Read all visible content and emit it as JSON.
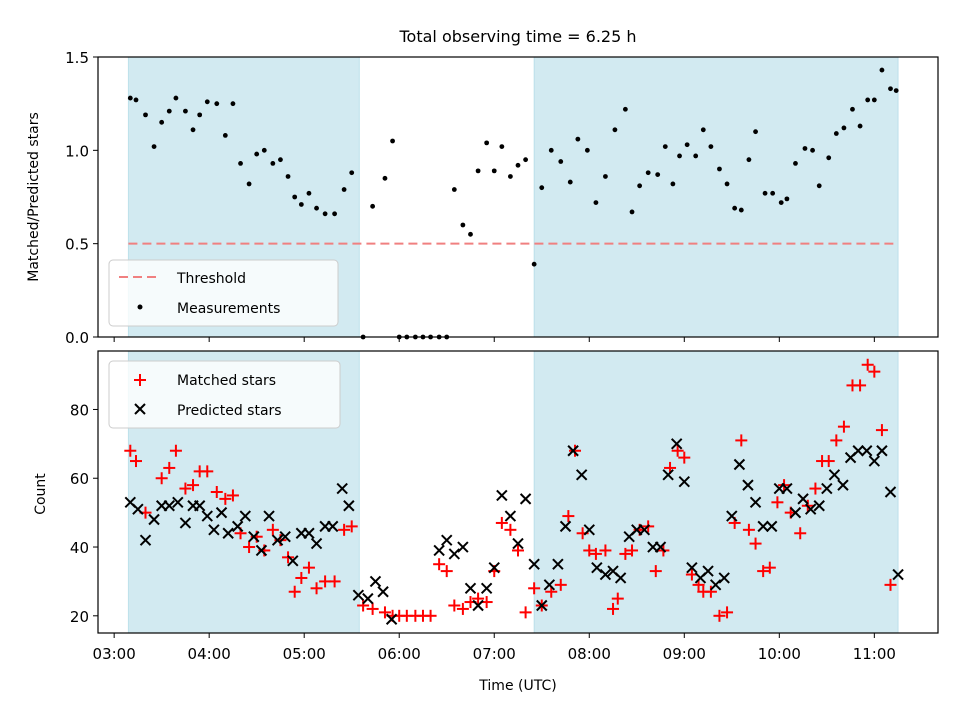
{
  "chart_data": [
    {
      "type": "scatter",
      "title": "Total observing time = 6.25 h",
      "ylabel": "Matched/Predicted stars",
      "xlim_hours": [
        2.83,
        11.67
      ],
      "ylim": [
        0,
        1.5
      ],
      "yticks": [
        "0.0",
        "0.5",
        "1.0",
        "1.5"
      ],
      "shaded_intervals_hours": [
        [
          3.15,
          5.58
        ],
        [
          7.42,
          11.25
        ]
      ],
      "shade_color": "#add8e6",
      "threshold": {
        "name": "Threshold",
        "value": 0.5,
        "x_range": [
          3.15,
          11.2
        ],
        "color": "#f08080"
      },
      "series": [
        {
          "name": "Measurements",
          "color": "#000000",
          "x": [
            3.17,
            3.23,
            3.33,
            3.42,
            3.5,
            3.58,
            3.65,
            3.75,
            3.83,
            3.9,
            3.98,
            4.08,
            4.17,
            4.25,
            4.33,
            4.42,
            4.5,
            4.58,
            4.67,
            4.75,
            4.83,
            4.9,
            4.97,
            5.05,
            5.13,
            5.22,
            5.32,
            5.42,
            5.5,
            5.62,
            5.72,
            5.85,
            5.93,
            6.0,
            6.08,
            6.17,
            6.25,
            6.33,
            6.42,
            6.5,
            6.58,
            6.67,
            6.75,
            6.83,
            6.92,
            7.0,
            7.08,
            7.17,
            7.25,
            7.33,
            7.42,
            7.5,
            7.6,
            7.7,
            7.8,
            7.88,
            7.98,
            8.07,
            8.17,
            8.27,
            8.38,
            8.45,
            8.53,
            8.62,
            8.72,
            8.8,
            8.88,
            8.95,
            9.03,
            9.12,
            9.2,
            9.28,
            9.37,
            9.45,
            9.53,
            9.6,
            9.68,
            9.75,
            9.85,
            9.93,
            10.02,
            10.08,
            10.17,
            10.27,
            10.35,
            10.42,
            10.52,
            10.6,
            10.68,
            10.77,
            10.85,
            10.93,
            11.0,
            11.08,
            11.17,
            11.23
          ],
          "y": [
            1.28,
            1.27,
            1.19,
            1.02,
            1.15,
            1.21,
            1.28,
            1.21,
            1.11,
            1.19,
            1.26,
            1.25,
            1.08,
            1.25,
            0.93,
            0.82,
            0.98,
            1.0,
            0.93,
            0.95,
            0.86,
            0.75,
            0.71,
            0.77,
            0.69,
            0.66,
            0.66,
            0.79,
            0.88,
            0.0,
            0.7,
            0.85,
            1.05,
            0.0,
            0.0,
            0.0,
            0.0,
            0.0,
            0.0,
            0.0,
            0.79,
            0.6,
            0.55,
            0.89,
            1.04,
            0.89,
            1.02,
            0.86,
            0.92,
            0.95,
            0.39,
            0.8,
            1.0,
            0.94,
            0.83,
            1.06,
            1.0,
            0.72,
            0.86,
            1.11,
            1.22,
            0.67,
            0.81,
            0.88,
            0.87,
            1.02,
            0.82,
            0.97,
            1.03,
            0.97,
            1.11,
            1.02,
            0.9,
            0.82,
            0.69,
            0.68,
            0.95,
            1.1,
            0.77,
            0.77,
            0.72,
            0.74,
            0.93,
            1.01,
            1.0,
            0.81,
            0.96,
            1.09,
            1.12,
            1.22,
            1.13,
            1.27,
            1.27,
            1.43,
            1.33,
            1.32
          ]
        }
      ],
      "legend": {
        "position": "lower-left",
        "entries": [
          "Threshold",
          "Measurements"
        ]
      }
    },
    {
      "type": "scatter",
      "xlabel": "Time (UTC)",
      "ylabel": "Count",
      "xlim_hours": [
        2.83,
        11.67
      ],
      "ylim": [
        15,
        97
      ],
      "yticks": [
        "20",
        "40",
        "60",
        "80"
      ],
      "xticks": [
        "03:00",
        "04:00",
        "05:00",
        "06:00",
        "07:00",
        "08:00",
        "09:00",
        "10:00",
        "11:00"
      ],
      "shaded_intervals_hours": [
        [
          3.15,
          5.58
        ],
        [
          7.42,
          11.25
        ]
      ],
      "series": [
        {
          "name": "Matched stars",
          "marker": "plus",
          "color": "#ff0000",
          "points": [
            [
              3.17,
              68
            ],
            [
              3.23,
              65
            ],
            [
              3.33,
              50
            ],
            [
              3.5,
              60
            ],
            [
              3.58,
              63
            ],
            [
              3.65,
              68
            ],
            [
              3.75,
              57
            ],
            [
              3.83,
              58
            ],
            [
              3.9,
              62
            ],
            [
              3.98,
              62
            ],
            [
              4.08,
              56
            ],
            [
              4.17,
              54
            ],
            [
              4.25,
              55
            ],
            [
              4.33,
              44
            ],
            [
              4.42,
              40
            ],
            [
              4.5,
              43
            ],
            [
              4.58,
              39
            ],
            [
              4.67,
              45
            ],
            [
              4.75,
              42
            ],
            [
              4.83,
              37
            ],
            [
              4.9,
              27
            ],
            [
              4.97,
              31
            ],
            [
              5.05,
              34
            ],
            [
              5.13,
              28
            ],
            [
              5.22,
              30
            ],
            [
              5.32,
              30
            ],
            [
              5.42,
              45
            ],
            [
              5.5,
              46
            ],
            [
              5.62,
              23
            ],
            [
              5.72,
              22
            ],
            [
              5.85,
              21
            ],
            [
              5.93,
              20
            ],
            [
              6.0,
              20
            ],
            [
              6.08,
              20
            ],
            [
              6.17,
              20
            ],
            [
              6.25,
              20
            ],
            [
              6.33,
              20
            ],
            [
              6.42,
              35
            ],
            [
              6.5,
              33
            ],
            [
              6.58,
              23
            ],
            [
              6.67,
              22
            ],
            [
              6.75,
              24
            ],
            [
              6.83,
              25
            ],
            [
              6.92,
              24
            ],
            [
              7.0,
              33
            ],
            [
              7.08,
              47
            ],
            [
              7.17,
              45
            ],
            [
              7.25,
              39
            ],
            [
              7.33,
              21
            ],
            [
              7.42,
              28
            ],
            [
              7.5,
              23
            ],
            [
              7.6,
              27
            ],
            [
              7.7,
              29
            ],
            [
              7.78,
              49
            ],
            [
              7.85,
              68
            ],
            [
              7.93,
              44
            ],
            [
              8.0,
              39
            ],
            [
              8.07,
              38
            ],
            [
              8.17,
              39
            ],
            [
              8.25,
              22
            ],
            [
              8.3,
              25
            ],
            [
              8.38,
              38
            ],
            [
              8.45,
              39
            ],
            [
              8.53,
              45
            ],
            [
              8.62,
              46
            ],
            [
              8.7,
              33
            ],
            [
              8.78,
              39
            ],
            [
              8.85,
              63
            ],
            [
              8.93,
              68
            ],
            [
              9.0,
              66
            ],
            [
              9.08,
              32
            ],
            [
              9.15,
              29
            ],
            [
              9.2,
              27
            ],
            [
              9.28,
              27
            ],
            [
              9.37,
              20
            ],
            [
              9.45,
              21
            ],
            [
              9.53,
              47
            ],
            [
              9.6,
              71
            ],
            [
              9.68,
              45
            ],
            [
              9.75,
              41
            ],
            [
              9.83,
              33
            ],
            [
              9.9,
              34
            ],
            [
              9.98,
              53
            ],
            [
              10.05,
              58
            ],
            [
              10.12,
              50
            ],
            [
              10.22,
              44
            ],
            [
              10.3,
              52
            ],
            [
              10.38,
              57
            ],
            [
              10.45,
              65
            ],
            [
              10.52,
              65
            ],
            [
              10.6,
              71
            ],
            [
              10.68,
              75
            ],
            [
              10.77,
              87
            ],
            [
              10.85,
              87
            ],
            [
              10.93,
              93
            ],
            [
              11.0,
              91
            ],
            [
              11.08,
              74
            ],
            [
              11.17,
              29
            ]
          ]
        },
        {
          "name": "Predicted stars",
          "marker": "x",
          "color": "#000000",
          "points": [
            [
              3.17,
              53
            ],
            [
              3.25,
              51
            ],
            [
              3.33,
              42
            ],
            [
              3.42,
              48
            ],
            [
              3.5,
              52
            ],
            [
              3.58,
              52
            ],
            [
              3.67,
              53
            ],
            [
              3.75,
              47
            ],
            [
              3.83,
              52
            ],
            [
              3.9,
              52
            ],
            [
              3.98,
              49
            ],
            [
              4.05,
              45
            ],
            [
              4.13,
              50
            ],
            [
              4.2,
              44
            ],
            [
              4.3,
              46
            ],
            [
              4.38,
              49
            ],
            [
              4.47,
              43
            ],
            [
              4.55,
              39
            ],
            [
              4.63,
              49
            ],
            [
              4.72,
              42
            ],
            [
              4.8,
              43
            ],
            [
              4.88,
              36
            ],
            [
              4.97,
              44
            ],
            [
              5.05,
              44
            ],
            [
              5.13,
              41
            ],
            [
              5.22,
              46
            ],
            [
              5.3,
              46
            ],
            [
              5.4,
              57
            ],
            [
              5.47,
              52
            ],
            [
              5.57,
              26
            ],
            [
              5.67,
              25
            ],
            [
              5.75,
              30
            ],
            [
              5.83,
              27
            ],
            [
              5.92,
              19
            ],
            [
              6.42,
              39
            ],
            [
              6.5,
              42
            ],
            [
              6.58,
              38
            ],
            [
              6.67,
              40
            ],
            [
              6.75,
              28
            ],
            [
              6.83,
              23
            ],
            [
              6.92,
              28
            ],
            [
              7.0,
              34
            ],
            [
              7.08,
              55
            ],
            [
              7.17,
              49
            ],
            [
              7.25,
              41
            ],
            [
              7.33,
              54
            ],
            [
              7.42,
              35
            ],
            [
              7.5,
              23
            ],
            [
              7.58,
              29
            ],
            [
              7.67,
              35
            ],
            [
              7.75,
              46
            ],
            [
              7.83,
              68
            ],
            [
              7.92,
              61
            ],
            [
              8.0,
              45
            ],
            [
              8.08,
              34
            ],
            [
              8.17,
              32
            ],
            [
              8.25,
              33
            ],
            [
              8.33,
              31
            ],
            [
              8.42,
              43
            ],
            [
              8.5,
              45
            ],
            [
              8.58,
              45
            ],
            [
              8.67,
              40
            ],
            [
              8.75,
              40
            ],
            [
              8.83,
              61
            ],
            [
              8.92,
              70
            ],
            [
              9.0,
              59
            ],
            [
              9.08,
              34
            ],
            [
              9.17,
              31
            ],
            [
              9.25,
              33
            ],
            [
              9.33,
              29
            ],
            [
              9.42,
              31
            ],
            [
              9.5,
              49
            ],
            [
              9.58,
              64
            ],
            [
              9.67,
              58
            ],
            [
              9.75,
              53
            ],
            [
              9.83,
              46
            ],
            [
              9.92,
              46
            ],
            [
              10.0,
              57
            ],
            [
              10.08,
              57
            ],
            [
              10.17,
              50
            ],
            [
              10.25,
              54
            ],
            [
              10.33,
              51
            ],
            [
              10.42,
              52
            ],
            [
              10.5,
              57
            ],
            [
              10.58,
              61
            ],
            [
              10.67,
              58
            ],
            [
              10.75,
              66
            ],
            [
              10.83,
              68
            ],
            [
              10.92,
              68
            ],
            [
              11.0,
              65
            ],
            [
              11.08,
              68
            ],
            [
              11.17,
              56
            ],
            [
              11.25,
              32
            ]
          ]
        }
      ],
      "legend": {
        "position": "upper-left",
        "entries": [
          "Matched stars",
          "Predicted stars"
        ]
      }
    }
  ]
}
